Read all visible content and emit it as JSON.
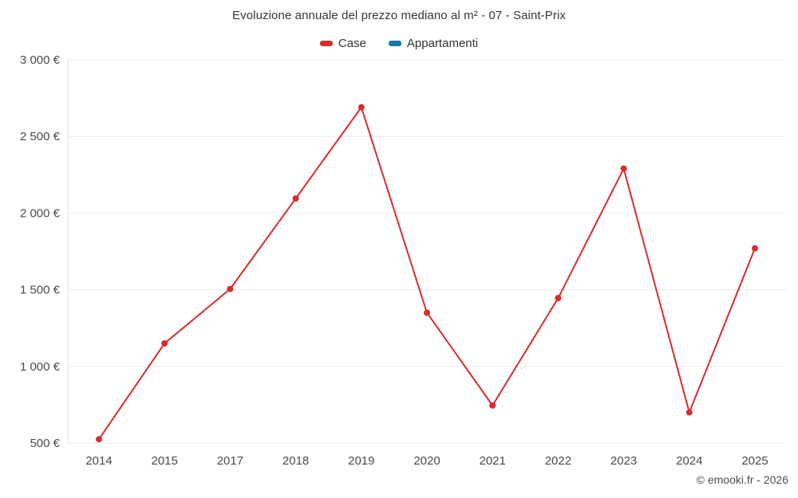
{
  "chart": {
    "copyright": "© emooki.fr - 2026"
  },
  "chart_data": {
    "type": "line",
    "title": "Evoluzione annuale del prezzo mediano al m² - 07 - Saint-Prix",
    "categories": [
      "2014",
      "2015",
      "2017",
      "2018",
      "2019",
      "2020",
      "2021",
      "2022",
      "2023",
      "2024",
      "2025"
    ],
    "series": [
      {
        "name": "Case",
        "color": "#d62e2e",
        "values": [
          525,
          1150,
          1505,
          2095,
          2690,
          1350,
          745,
          1445,
          2290,
          700,
          1770
        ]
      },
      {
        "name": "Appartamenti",
        "color": "#1878a8",
        "values": []
      }
    ],
    "xlabel": "",
    "ylabel": "",
    "ylim": [
      500,
      3000
    ],
    "yticks": [
      {
        "value": 500,
        "label": "500 €"
      },
      {
        "value": 1000,
        "label": "1 000 €"
      },
      {
        "value": 1500,
        "label": "1 500 €"
      },
      {
        "value": 2000,
        "label": "2 000 €"
      },
      {
        "value": 2500,
        "label": "2 500 €"
      },
      {
        "value": 3000,
        "label": "3 000 €"
      }
    ],
    "grid": true,
    "legend_position": "top",
    "grid_color": "#ebebeb",
    "axis_line_color": "#e0e0e0"
  }
}
